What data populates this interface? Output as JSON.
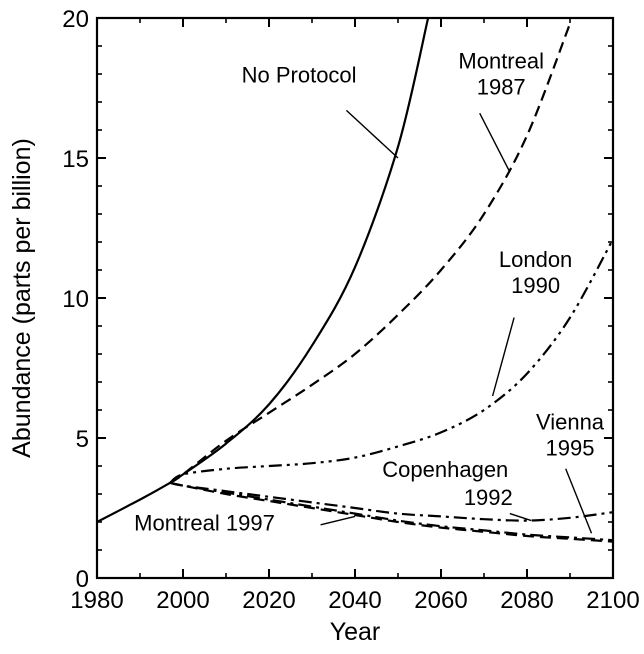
{
  "chart_data": {
    "type": "line",
    "title": "",
    "xlabel": "Year",
    "ylabel": "Abundance (parts per billion)",
    "xlim": [
      1980,
      2100
    ],
    "ylim": [
      0,
      20
    ],
    "x_ticks": [
      1980,
      2000,
      2020,
      2040,
      2060,
      2080,
      2100
    ],
    "y_ticks": [
      0,
      5,
      10,
      15,
      20
    ],
    "grid": false,
    "line_color": "#000000",
    "series": [
      {
        "name": "No Protocol",
        "style": "solid",
        "points": [
          [
            1980,
            2.0
          ],
          [
            1990,
            2.8
          ],
          [
            1997,
            3.4
          ],
          [
            2000,
            3.7
          ],
          [
            2010,
            4.8
          ],
          [
            2020,
            6.2
          ],
          [
            2030,
            8.3
          ],
          [
            2040,
            11.1
          ],
          [
            2050,
            15.4
          ],
          [
            2057,
            20.0
          ]
        ]
      },
      {
        "name": "Montreal 1987",
        "style": "dashed",
        "points": [
          [
            1997,
            3.4
          ],
          [
            2000,
            3.7
          ],
          [
            2010,
            4.9
          ],
          [
            2020,
            5.9
          ],
          [
            2030,
            6.9
          ],
          [
            2040,
            8.0
          ],
          [
            2050,
            9.4
          ],
          [
            2060,
            11.0
          ],
          [
            2070,
            13.0
          ],
          [
            2080,
            15.8
          ],
          [
            2090,
            19.8
          ]
        ]
      },
      {
        "name": "London 1990",
        "style": "dashdotdot",
        "points": [
          [
            1997,
            3.4
          ],
          [
            2000,
            3.7
          ],
          [
            2010,
            3.9
          ],
          [
            2020,
            4.0
          ],
          [
            2030,
            4.1
          ],
          [
            2040,
            4.3
          ],
          [
            2050,
            4.7
          ],
          [
            2060,
            5.2
          ],
          [
            2070,
            6.0
          ],
          [
            2080,
            7.3
          ],
          [
            2090,
            9.3
          ],
          [
            2100,
            12.1
          ]
        ]
      },
      {
        "name": "Copenhagen 1992",
        "style": "dashdot",
        "points": [
          [
            1997,
            3.4
          ],
          [
            2000,
            3.3
          ],
          [
            2010,
            3.1
          ],
          [
            2020,
            2.9
          ],
          [
            2030,
            2.7
          ],
          [
            2040,
            2.5
          ],
          [
            2050,
            2.3
          ],
          [
            2060,
            2.2
          ],
          [
            2070,
            2.1
          ],
          [
            2080,
            2.05
          ],
          [
            2090,
            2.15
          ],
          [
            2100,
            2.35
          ]
        ]
      },
      {
        "name": "Vienna 1995",
        "style": "dashdot",
        "points": [
          [
            1997,
            3.4
          ],
          [
            2000,
            3.3
          ],
          [
            2010,
            3.05
          ],
          [
            2020,
            2.8
          ],
          [
            2030,
            2.55
          ],
          [
            2040,
            2.3
          ],
          [
            2050,
            2.05
          ],
          [
            2060,
            1.85
          ],
          [
            2070,
            1.7
          ],
          [
            2080,
            1.55
          ],
          [
            2090,
            1.45
          ],
          [
            2100,
            1.35
          ]
        ]
      },
      {
        "name": "Montreal 1997",
        "style": "dashed",
        "points": [
          [
            1997,
            3.4
          ],
          [
            2000,
            3.3
          ],
          [
            2010,
            3.0
          ],
          [
            2020,
            2.75
          ],
          [
            2030,
            2.5
          ],
          [
            2040,
            2.25
          ],
          [
            2050,
            2.0
          ],
          [
            2060,
            1.8
          ],
          [
            2070,
            1.65
          ],
          [
            2080,
            1.5
          ],
          [
            2090,
            1.4
          ],
          [
            2100,
            1.3
          ]
        ]
      }
    ],
    "annotations": [
      {
        "lines": [
          "No Protocol"
        ],
        "at": [
          2027,
          17.7
        ],
        "pointer_from": [
          2038,
          16.7
        ],
        "pointer_to": [
          2050,
          15.0
        ]
      },
      {
        "lines": [
          "Montreal",
          "1987"
        ],
        "at": [
          2074,
          18.2
        ],
        "pointer_from": [
          2069,
          16.6
        ],
        "pointer_to": [
          2076,
          14.5
        ]
      },
      {
        "lines": [
          "London",
          "1990"
        ],
        "at": [
          2082,
          11.1
        ],
        "pointer_from": [
          2077,
          9.3
        ],
        "pointer_to": [
          2072,
          6.5
        ]
      },
      {
        "lines": [
          "Vienna",
          "1995"
        ],
        "at": [
          2090,
          5.3
        ],
        "pointer_from": [
          2089,
          3.9
        ],
        "pointer_to": [
          2095,
          1.6
        ]
      },
      {
        "lines": [
          "Copenhagen"
        ],
        "at": [
          2061,
          3.6
        ],
        "pointer_from": null,
        "pointer_to": null
      },
      {
        "lines": [
          "1992"
        ],
        "at": [
          2071,
          2.6
        ],
        "pointer_from": [
          2076,
          2.3
        ],
        "pointer_to": [
          2081,
          2.05
        ]
      },
      {
        "lines": [
          "Montreal 1997"
        ],
        "at": [
          2005,
          1.7
        ],
        "pointer_from": [
          2032,
          1.9
        ],
        "pointer_to": [
          2040,
          2.2
        ]
      }
    ]
  }
}
